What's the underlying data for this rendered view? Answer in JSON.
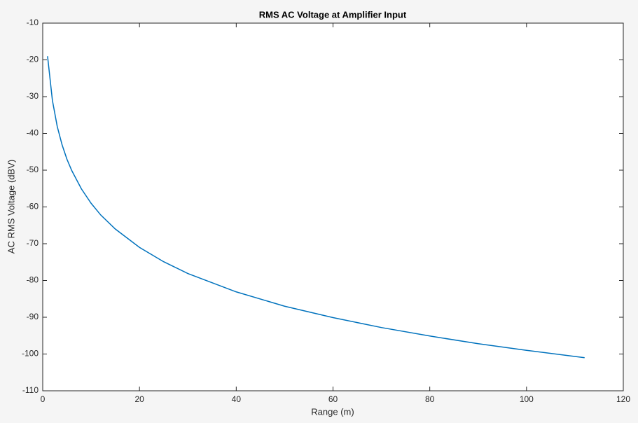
{
  "chart_data": {
    "type": "line",
    "title": "RMS AC Voltage at Amplifier Input",
    "xlabel": "Range (m)",
    "ylabel": "AC RMS Voltage (dBV)",
    "x": [
      1,
      2,
      3,
      4,
      5,
      6,
      8,
      10,
      12,
      15,
      20,
      25,
      30,
      40,
      50,
      60,
      70,
      80,
      90,
      100,
      112
    ],
    "series": [
      {
        "color": "#0072bd",
        "values": [
          -19,
          -31.0,
          -38.1,
          -43.1,
          -47.0,
          -50.1,
          -55.1,
          -59,
          -62.2,
          -66.0,
          -71.0,
          -74.9,
          -78.1,
          -83.1,
          -87.0,
          -90.1,
          -92.8,
          -95.1,
          -97.2,
          -99,
          -101.0
        ]
      }
    ],
    "xlim": [
      0,
      120
    ],
    "xticks": [
      0,
      20,
      40,
      60,
      80,
      100,
      120
    ],
    "ylim": [
      -110,
      -10
    ],
    "yticks": [
      -110,
      -100,
      -90,
      -80,
      -70,
      -60,
      -50,
      -40,
      -30,
      -20,
      -10
    ],
    "box": true
  }
}
